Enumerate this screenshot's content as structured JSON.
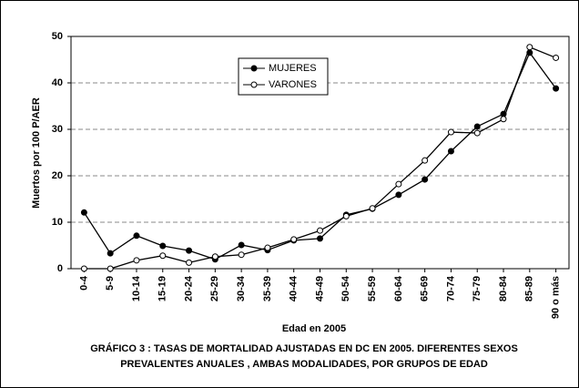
{
  "chart_data": {
    "type": "line",
    "y_label": "Muertos por 100 P/AER",
    "x_label": "Edad  en 2005",
    "caption": [
      "GRÁFICO 3 :  TASAS DE MORTALIDAD AJUSTADAS EN  DC EN  2005. DIFERENTES SEXOS",
      "PREVALENTES ANUALES , AMBAS MODALIDADES, POR GRUPOS DE EDAD"
    ],
    "categories": [
      "0-4",
      "5-9",
      "10-14",
      "15-19",
      "20-24",
      "25-29",
      "30-34",
      "35-39",
      "40-44",
      "45-49",
      "50-54",
      "55-59",
      "60-64",
      "65-69",
      "70-74",
      "75-79",
      "80-84",
      "85-89",
      "90 o más"
    ],
    "series": [
      {
        "name": "MUJERES",
        "color": "#000000",
        "marker_fill": "#000000",
        "values": [
          12.1,
          3.3,
          7.1,
          4.9,
          3.9,
          2.0,
          5.1,
          4.0,
          6.1,
          6.5,
          11.6,
          12.9,
          15.9,
          19.2,
          25.3,
          30.6,
          33.3,
          46.5,
          38.8
        ]
      },
      {
        "name": "VARONES",
        "color": "#000000",
        "marker_fill": "#ffffff",
        "values": [
          0,
          0,
          1.8,
          2.8,
          1.3,
          2.6,
          3.0,
          4.5,
          6.3,
          8.2,
          11.3,
          13.0,
          18.2,
          23.3,
          29.4,
          29.2,
          32.2,
          47.7,
          45.4
        ]
      }
    ],
    "ylim": [
      0,
      50
    ],
    "yticks": [
      0,
      10,
      20,
      30,
      40,
      50
    ],
    "grid": true
  }
}
